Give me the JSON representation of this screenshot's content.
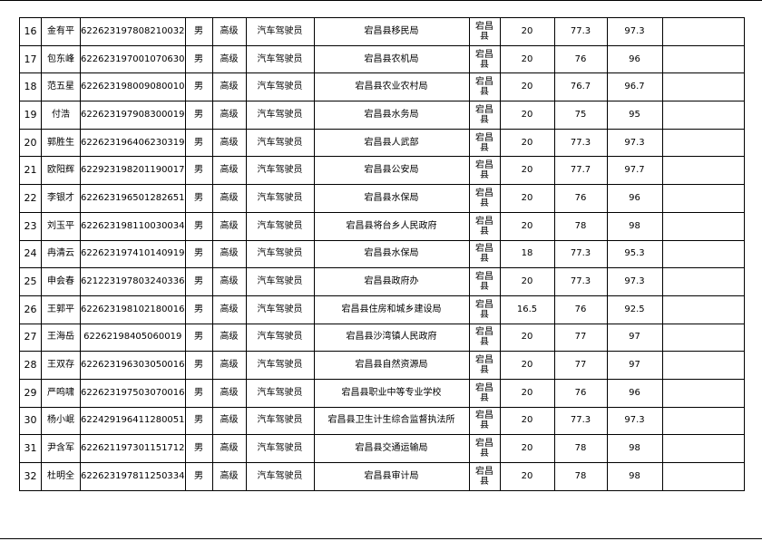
{
  "rows": [
    {
      "no": "16",
      "name": "金有平",
      "id": "622623197808210032",
      "gender": "男",
      "level": "高级",
      "job": "汽车驾驶员",
      "unit": "宕昌县移民局",
      "county": "宕昌县",
      "score1": "20",
      "score2": "77.3",
      "total": "97.3",
      "note": ""
    },
    {
      "no": "17",
      "name": "包东峰",
      "id": "622623197001070630",
      "gender": "男",
      "level": "高级",
      "job": "汽车驾驶员",
      "unit": "宕昌县农机局",
      "county": "宕昌县",
      "score1": "20",
      "score2": "76",
      "total": "96",
      "note": ""
    },
    {
      "no": "18",
      "name": "范五星",
      "id": "622623198009080010",
      "gender": "男",
      "level": "高级",
      "job": "汽车驾驶员",
      "unit": "宕昌县农业农村局",
      "county": "宕昌县",
      "score1": "20",
      "score2": "76.7",
      "total": "96.7",
      "note": ""
    },
    {
      "no": "19",
      "name": "付浩",
      "id": "622623197908300019",
      "gender": "男",
      "level": "高级",
      "job": "汽车驾驶员",
      "unit": "宕昌县水务局",
      "county": "宕昌县",
      "score1": "20",
      "score2": "75",
      "total": "95",
      "note": ""
    },
    {
      "no": "20",
      "name": "郭胜生",
      "id": "622623196406230319",
      "gender": "男",
      "level": "高级",
      "job": "汽车驾驶员",
      "unit": "宕昌县人武部",
      "county": "宕昌县",
      "score1": "20",
      "score2": "77.3",
      "total": "97.3",
      "note": ""
    },
    {
      "no": "21",
      "name": "欧阳辉",
      "id": "622923198201190017",
      "gender": "男",
      "level": "高级",
      "job": "汽车驾驶员",
      "unit": "宕昌县公安局",
      "county": "宕昌县",
      "score1": "20",
      "score2": "77.7",
      "total": "97.7",
      "note": ""
    },
    {
      "no": "22",
      "name": "李银才",
      "id": "622623196501282651",
      "gender": "男",
      "level": "高级",
      "job": "汽车驾驶员",
      "unit": "宕昌县水保局",
      "county": "宕昌县",
      "score1": "20",
      "score2": "76",
      "total": "96",
      "note": ""
    },
    {
      "no": "23",
      "name": "刘玉平",
      "id": "622623198110030034",
      "gender": "男",
      "level": "高级",
      "job": "汽车驾驶员",
      "unit": "宕昌县将台乡人民政府",
      "county": "宕昌县",
      "score1": "20",
      "score2": "78",
      "total": "98",
      "note": ""
    },
    {
      "no": "24",
      "name": "冉清云",
      "id": "622623197410140919",
      "gender": "男",
      "level": "高级",
      "job": "汽车驾驶员",
      "unit": "宕昌县水保局",
      "county": "宕昌县",
      "score1": "18",
      "score2": "77.3",
      "total": "95.3",
      "note": ""
    },
    {
      "no": "25",
      "name": "申会春",
      "id": "621223197803240336",
      "gender": "男",
      "level": "高级",
      "job": "汽车驾驶员",
      "unit": "宕昌县政府办",
      "county": "宕昌县",
      "score1": "20",
      "score2": "77.3",
      "total": "97.3",
      "note": ""
    },
    {
      "no": "26",
      "name": "王郭平",
      "id": "622623198102180016",
      "gender": "男",
      "level": "高级",
      "job": "汽车驾驶员",
      "unit": "宕昌县住房和城乡建设局",
      "county": "宕昌县",
      "score1": "16.5",
      "score2": "76",
      "total": "92.5",
      "note": ""
    },
    {
      "no": "27",
      "name": "王海岳",
      "id": "62262198405060019",
      "gender": "男",
      "level": "高级",
      "job": "汽车驾驶员",
      "unit": "宕昌县沙湾镇人民政府",
      "county": "宕昌县",
      "score1": "20",
      "score2": "77",
      "total": "97",
      "note": ""
    },
    {
      "no": "28",
      "name": "王双存",
      "id": "622623196303050016",
      "gender": "男",
      "level": "高级",
      "job": "汽车驾驶员",
      "unit": "宕昌县自然资源局",
      "county": "宕昌县",
      "score1": "20",
      "score2": "77",
      "total": "97",
      "note": ""
    },
    {
      "no": "29",
      "name": "严鸣啸",
      "id": "622623197503070016",
      "gender": "男",
      "level": "高级",
      "job": "汽车驾驶员",
      "unit": "宕昌县职业中等专业学校",
      "county": "宕昌县",
      "score1": "20",
      "score2": "76",
      "total": "96",
      "note": ""
    },
    {
      "no": "30",
      "name": "杨小岷",
      "id": "622429196411280051",
      "gender": "男",
      "level": "高级",
      "job": "汽车驾驶员",
      "unit": "宕昌县卫生计生综合监督执法所",
      "county": "宕昌县",
      "score1": "20",
      "score2": "77.3",
      "total": "97.3",
      "note": ""
    },
    {
      "no": "31",
      "name": "尹含军",
      "id": "622621197301151712",
      "gender": "男",
      "level": "高级",
      "job": "汽车驾驶员",
      "unit": "宕昌县交通运输局",
      "county": "宕昌县",
      "score1": "20",
      "score2": "78",
      "total": "98",
      "note": ""
    },
    {
      "no": "32",
      "name": "杜明全",
      "id": "622623197811250334",
      "gender": "男",
      "level": "高级",
      "job": "汽车驾驶员",
      "unit": "宕昌县审计局",
      "county": "宕昌县",
      "score1": "20",
      "score2": "78",
      "total": "98",
      "note": ""
    }
  ]
}
